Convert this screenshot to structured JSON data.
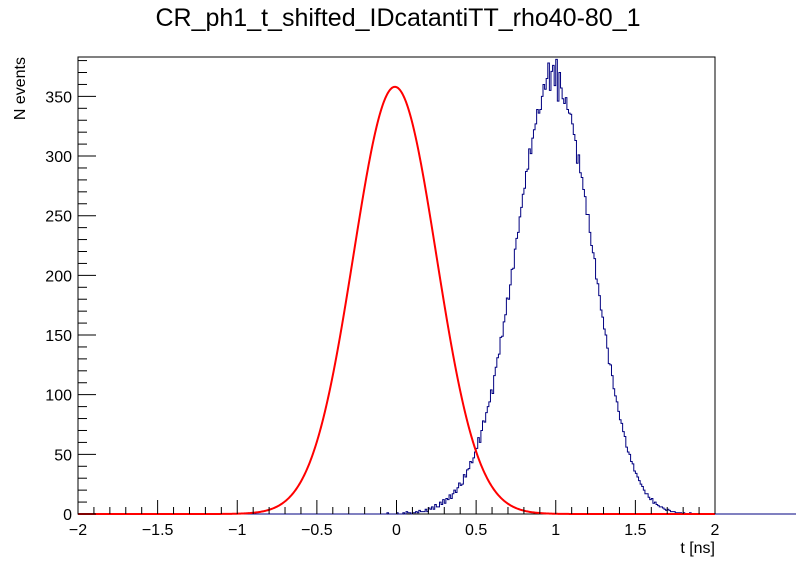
{
  "chart_data": {
    "type": "histogram",
    "title": "CR_ph1_t_shifted_IDcatantiTT_rho40-80_1",
    "xlabel": "t [ns]",
    "ylabel": "N events",
    "xlim": [
      -2,
      2
    ],
    "ylim": [
      0,
      383
    ],
    "x_major_ticks": [
      -2,
      -1.5,
      -1,
      -0.5,
      0,
      0.5,
      1,
      1.5,
      2
    ],
    "x_tick_labels": [
      "−2",
      "−1.5",
      "−1",
      "−0.5",
      "0",
      "0.5",
      "1",
      "1.5",
      "2"
    ],
    "y_major_ticks": [
      0,
      50,
      100,
      150,
      200,
      250,
      300,
      350
    ],
    "y_tick_labels": [
      "0",
      "50",
      "100",
      "150",
      "200",
      "250",
      "300",
      "350"
    ],
    "grid": false,
    "legend": "none",
    "series": [
      {
        "kind": "histogram",
        "bin_width": 0.01,
        "x_start": -2,
        "color": "#000080",
        "values": [
          0,
          0,
          0,
          0,
          0,
          0,
          0,
          0,
          0,
          0,
          0,
          0,
          0,
          0,
          0,
          0,
          0,
          0,
          0,
          0,
          0,
          0,
          0,
          0,
          0,
          0,
          0,
          0,
          0,
          0,
          0,
          0,
          0,
          0,
          0,
          0,
          0,
          0,
          0,
          0,
          0,
          0,
          0,
          0,
          0,
          0,
          0,
          0,
          0,
          0,
          0,
          0,
          0,
          0,
          0,
          0,
          0,
          0,
          0,
          0,
          0,
          0,
          0,
          0,
          0,
          0,
          0,
          0,
          0,
          0,
          0,
          0,
          0,
          0,
          0,
          0,
          0,
          0,
          0,
          0,
          0,
          0,
          0,
          0,
          0,
          0,
          0,
          0,
          0,
          0,
          0,
          0,
          0,
          0,
          0,
          0,
          0,
          0,
          0,
          0,
          0,
          0,
          0,
          0,
          0,
          0,
          0,
          0,
          0,
          0,
          0,
          0,
          0,
          0,
          0,
          0,
          0,
          0,
          0,
          0,
          0,
          0,
          0,
          0,
          0,
          0,
          0,
          0,
          0,
          0,
          0,
          0,
          0,
          0,
          0,
          0,
          0,
          0,
          0,
          0,
          0,
          0,
          0,
          0,
          0,
          0,
          0,
          0,
          0,
          0,
          0,
          0,
          0,
          0,
          0,
          0,
          0,
          0,
          0,
          0,
          0,
          0,
          0,
          0,
          0,
          0,
          0,
          0,
          0,
          0,
          0,
          0,
          0,
          0,
          0,
          0,
          0,
          0,
          0,
          0,
          0,
          0,
          0,
          0,
          0,
          0,
          0,
          0,
          0,
          0,
          0,
          0,
          0,
          0,
          1,
          0,
          0,
          0,
          0,
          0,
          1,
          0,
          0,
          0,
          1,
          0,
          2,
          1,
          1,
          0,
          1,
          1,
          2,
          1,
          3,
          2,
          2,
          2,
          4,
          2,
          5,
          4,
          6,
          4,
          8,
          6,
          6,
          10,
          8,
          12,
          9,
          13,
          12,
          16,
          13,
          17,
          20,
          18,
          22,
          26,
          24,
          25,
          33,
          31,
          37,
          38,
          44,
          43,
          47,
          52,
          55,
          64,
          60,
          70,
          78,
          77,
          85,
          90,
          94,
          104,
          101,
          116,
          123,
          131,
          134,
          148,
          149,
          161,
          167,
          181,
          180,
          192,
          205,
          206,
          222,
          231,
          236,
          249,
          257,
          268,
          273,
          287,
          289,
          306,
          302,
          315,
          322,
          327,
          339,
          336,
          339,
          350,
          360,
          356,
          365,
          378,
          355,
          371,
          376,
          359,
          381,
          346,
          370,
          357,
          348,
          344,
          349,
          339,
          336,
          335,
          327,
          318,
          313,
          294,
          301,
          286,
          282,
          272,
          266,
          251,
          251,
          236,
          225,
          219,
          214,
          197,
          193,
          183,
          171,
          165,
          155,
          150,
          139,
          126,
          125,
          116,
          105,
          99,
          94,
          86,
          79,
          76,
          69,
          65,
          56,
          52,
          50,
          44,
          42,
          36,
          34,
          31,
          28,
          25,
          23,
          20,
          17,
          17,
          14,
          12,
          13,
          9,
          10,
          8,
          7,
          6,
          6,
          5,
          4,
          3,
          4,
          3,
          2,
          2,
          2,
          1,
          1,
          1,
          1,
          0,
          1,
          0,
          0,
          0,
          1,
          0,
          0,
          0,
          0,
          0,
          0,
          0,
          0,
          0,
          0,
          0,
          0,
          0,
          0,
          0,
          0,
          0,
          0,
          0,
          0,
          0,
          0,
          0,
          0,
          0,
          0,
          0,
          0,
          0,
          0,
          0,
          0,
          0,
          0,
          0,
          0,
          0,
          0,
          0,
          0,
          0,
          0,
          0,
          0,
          0,
          0,
          0,
          0,
          0,
          0,
          0,
          0,
          0,
          0,
          0,
          0,
          0,
          0,
          0,
          0,
          0,
          0,
          0,
          0,
          0,
          0,
          0,
          0,
          0,
          0,
          0,
          0,
          0,
          0,
          0,
          0,
          0,
          0,
          0,
          0,
          0,
          0,
          0,
          0,
          0,
          0,
          0,
          0,
          0,
          0,
          0,
          0,
          0,
          0,
          0,
          0,
          0,
          0,
          0,
          0,
          0,
          0,
          0,
          0,
          0,
          0,
          0,
          0,
          0,
          0,
          0,
          0,
          0
        ]
      },
      {
        "kind": "fit",
        "function": "gaussian",
        "color": "#ff0000",
        "amplitude": 358,
        "mean": -0.01,
        "sigma": 0.26,
        "x_range": [
          -2,
          2
        ]
      }
    ]
  }
}
